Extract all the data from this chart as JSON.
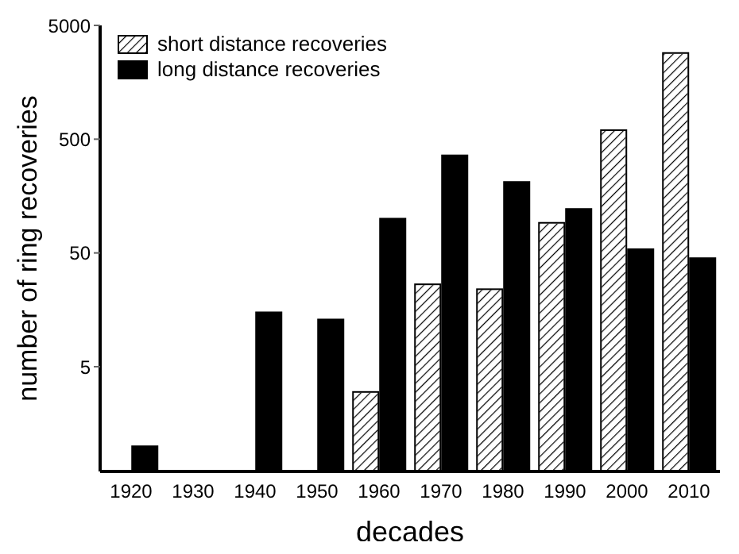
{
  "chart_data": {
    "type": "bar",
    "xlabel": "decades",
    "ylabel": "number of ring recoveries",
    "categories": [
      "1920",
      "1930",
      "1940",
      "1950",
      "1960",
      "1970",
      "1980",
      "1990",
      "2000",
      "2010"
    ],
    "series": [
      {
        "name": "short distance recoveries",
        "color": "#ffffff",
        "values": [
          null,
          null,
          null,
          null,
          3,
          26.5,
          24,
          92,
          600,
          2860
        ]
      },
      {
        "name": "long distance recoveries",
        "color": "#000000",
        "values": [
          1,
          null,
          15,
          13,
          100,
          360,
          210,
          122,
          54,
          45
        ]
      }
    ],
    "log": true,
    "ylim": [
      0.6,
      5000
    ],
    "yticks": [
      5,
      50,
      500,
      5000
    ],
    "grid": false,
    "legend": "top left"
  }
}
